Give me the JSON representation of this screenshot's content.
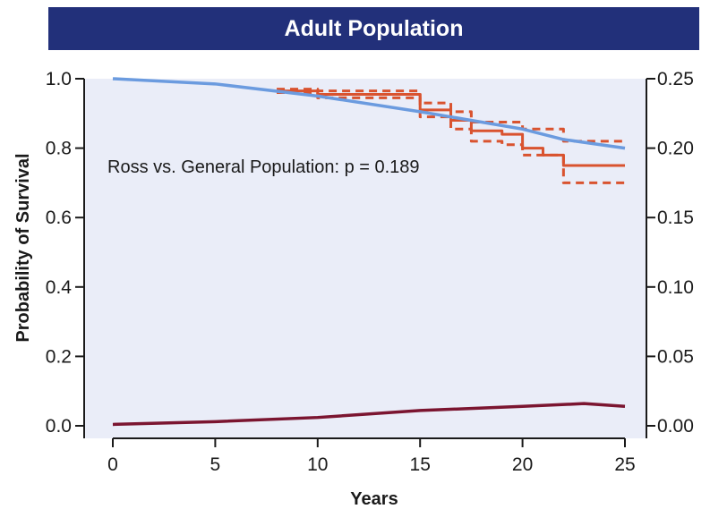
{
  "chart_data": {
    "type": "line",
    "title": "Adult Population",
    "xlabel": "Years",
    "ylabel": "Probability of Survival",
    "xlim": [
      0,
      25
    ],
    "ylim": [
      0,
      1.0
    ],
    "y2lim": [
      0,
      0.25
    ],
    "x_ticks": [
      "0",
      "5",
      "10",
      "15",
      "20",
      "25"
    ],
    "y_ticks": [
      "0.0",
      "0.2",
      "0.4",
      "0.6",
      "0.8",
      "1.0"
    ],
    "y2_ticks": [
      "0.00",
      "0.05",
      "0.10",
      "0.15",
      "0.20",
      "0.25"
    ],
    "annotation": "Ross vs. General Population: p = 0.189",
    "grid": false,
    "colors": {
      "plot_background": "#eaedf8",
      "banner": "#22307a",
      "general_population": "#6b9bdf",
      "ross": "#d9532f",
      "lower_curve": "#7b1530"
    },
    "series": [
      {
        "key": "general_population",
        "axis": "left",
        "style": "solid",
        "points": [
          [
            0,
            1.0
          ],
          [
            5,
            0.985
          ],
          [
            10,
            0.95
          ],
          [
            15,
            0.905
          ],
          [
            18,
            0.875
          ],
          [
            20,
            0.855
          ],
          [
            22,
            0.825
          ],
          [
            25,
            0.8
          ]
        ]
      },
      {
        "key": "ross",
        "axis": "left",
        "style": "step",
        "points": [
          [
            8,
            0.965
          ],
          [
            10,
            0.955
          ],
          [
            15,
            0.91
          ],
          [
            16.5,
            0.88
          ],
          [
            17.5,
            0.85
          ],
          [
            19,
            0.84
          ],
          [
            20,
            0.8
          ],
          [
            21,
            0.78
          ],
          [
            22,
            0.75
          ],
          [
            25,
            0.75
          ]
        ]
      },
      {
        "key": "ross_upper_ci",
        "axis": "left",
        "style": "dashed-step",
        "points": [
          [
            8,
            0.97
          ],
          [
            10,
            0.965
          ],
          [
            15,
            0.93
          ],
          [
            16.5,
            0.905
          ],
          [
            17.5,
            0.875
          ],
          [
            20,
            0.855
          ],
          [
            22,
            0.82
          ],
          [
            25,
            0.82
          ]
        ]
      },
      {
        "key": "ross_lower_ci",
        "axis": "left",
        "style": "dashed-step",
        "points": [
          [
            8,
            0.96
          ],
          [
            10,
            0.945
          ],
          [
            15,
            0.89
          ],
          [
            16.5,
            0.855
          ],
          [
            17.5,
            0.82
          ],
          [
            19,
            0.81
          ],
          [
            20,
            0.78
          ],
          [
            22,
            0.7
          ],
          [
            25,
            0.7
          ]
        ]
      },
      {
        "key": "lower_curve",
        "axis": "right",
        "style": "solid",
        "points": [
          [
            0,
            0.001
          ],
          [
            5,
            0.003
          ],
          [
            10,
            0.006
          ],
          [
            15,
            0.011
          ],
          [
            20,
            0.014
          ],
          [
            23,
            0.016
          ],
          [
            25,
            0.014
          ]
        ]
      }
    ]
  }
}
